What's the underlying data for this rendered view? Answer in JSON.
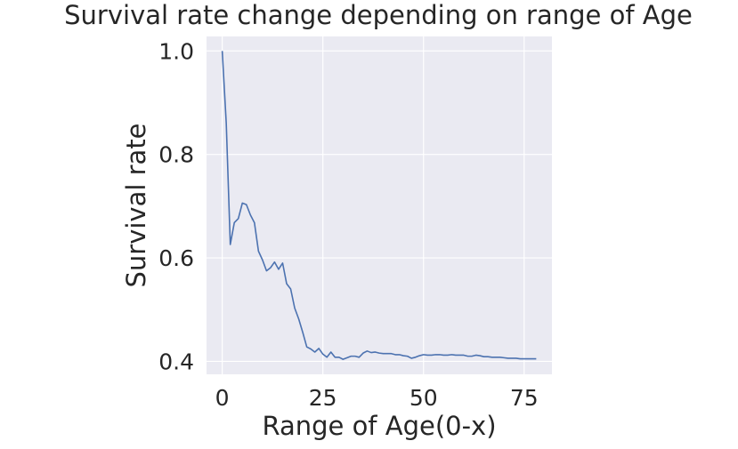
{
  "chart_data": {
    "type": "line",
    "title": "Survival rate change depending on range of Age",
    "xlabel": "Range of Age(0-x)",
    "ylabel": "Survival rate",
    "xlim": [
      -3.9,
      81.9
    ],
    "ylim": [
      0.375,
      1.028
    ],
    "xticks": [
      0,
      25,
      50,
      75
    ],
    "yticks": [
      0.4,
      0.6,
      0.8,
      1.0
    ],
    "xtick_labels": [
      "0",
      "25",
      "50",
      "75"
    ],
    "ytick_labels": [
      "0.4",
      "0.6",
      "0.8",
      "1.0"
    ],
    "grid": true,
    "background": "#eaeaf2",
    "grid_color": "#ffffff",
    "line_color": "#4c72b0",
    "series": [
      {
        "x": [
          0,
          1,
          2,
          3,
          4,
          5,
          6,
          7,
          8,
          9,
          10,
          11,
          12,
          13,
          14,
          15,
          16,
          17,
          18,
          19,
          20,
          21,
          22,
          23,
          24,
          25,
          26,
          27,
          28,
          29,
          30,
          31,
          32,
          33,
          34,
          35,
          36,
          37,
          38,
          39,
          40,
          41,
          42,
          43,
          44,
          45,
          46,
          47,
          48,
          49,
          50,
          51,
          52,
          53,
          54,
          55,
          56,
          57,
          58,
          59,
          60,
          61,
          62,
          63,
          64,
          65,
          66,
          67,
          68,
          69,
          70,
          71,
          72,
          73,
          74,
          75,
          76,
          77,
          78
        ],
        "y": [
          1.0,
          0.86,
          0.626,
          0.668,
          0.676,
          0.706,
          0.703,
          0.683,
          0.668,
          0.613,
          0.596,
          0.575,
          0.581,
          0.592,
          0.578,
          0.59,
          0.55,
          0.54,
          0.503,
          0.482,
          0.456,
          0.428,
          0.424,
          0.418,
          0.425,
          0.414,
          0.408,
          0.418,
          0.408,
          0.408,
          0.404,
          0.407,
          0.41,
          0.41,
          0.408,
          0.416,
          0.42,
          0.417,
          0.418,
          0.416,
          0.415,
          0.415,
          0.415,
          0.413,
          0.413,
          0.411,
          0.41,
          0.406,
          0.408,
          0.411,
          0.413,
          0.412,
          0.412,
          0.413,
          0.413,
          0.412,
          0.412,
          0.413,
          0.412,
          0.412,
          0.412,
          0.41,
          0.41,
          0.412,
          0.411,
          0.409,
          0.409,
          0.408,
          0.408,
          0.408,
          0.407,
          0.406,
          0.406,
          0.406,
          0.405,
          0.405,
          0.405,
          0.405,
          0.405
        ]
      }
    ]
  }
}
